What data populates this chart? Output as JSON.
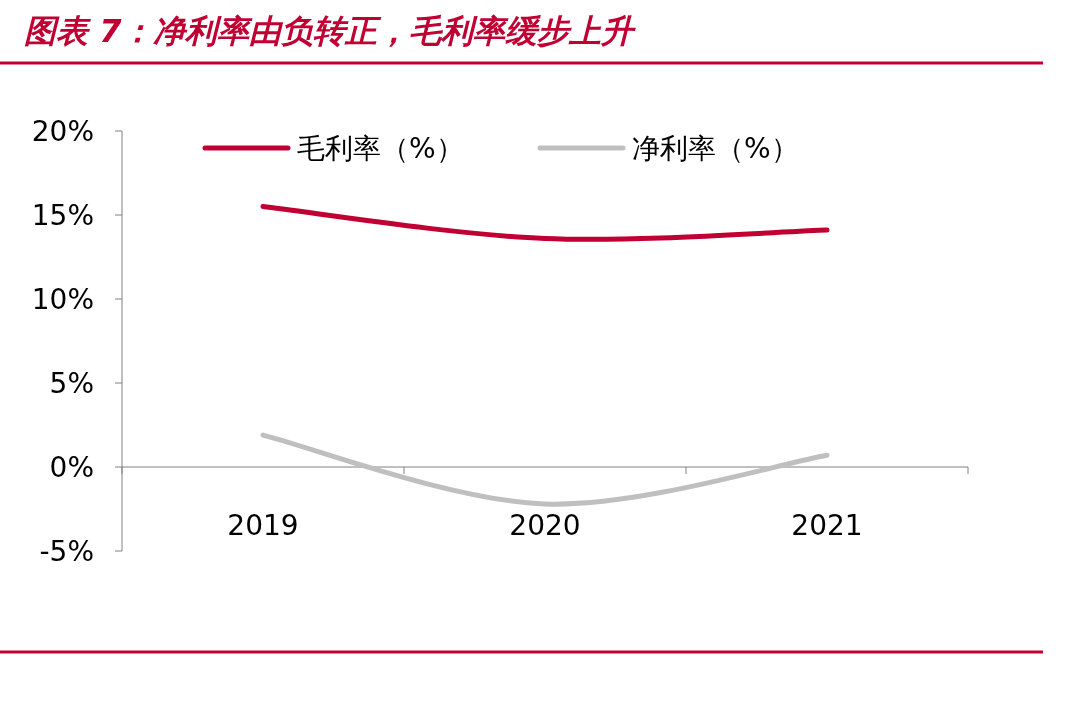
{
  "chart_data": {
    "type": "line",
    "title": "图表 7：净利率由负转正，毛利率缓步上升",
    "categories": [
      "2019",
      "2020",
      "2021"
    ],
    "series": [
      {
        "name": "毛利率（%）",
        "color": "#c00032",
        "values": [
          15.5,
          13.6,
          14.1
        ]
      },
      {
        "name": "净利率（%）",
        "color": "#bfbfbf",
        "values": [
          1.9,
          -2.2,
          0.7
        ]
      }
    ],
    "ylim": [
      -5,
      20
    ],
    "yticks": [
      {
        "value": -5,
        "label": "-5%"
      },
      {
        "value": 0,
        "label": "0%"
      },
      {
        "value": 5,
        "label": "5%"
      },
      {
        "value": 10,
        "label": "10%"
      },
      {
        "value": 15,
        "label": "15%"
      },
      {
        "value": 20,
        "label": "20%"
      }
    ],
    "legend": "top",
    "grid": false
  }
}
